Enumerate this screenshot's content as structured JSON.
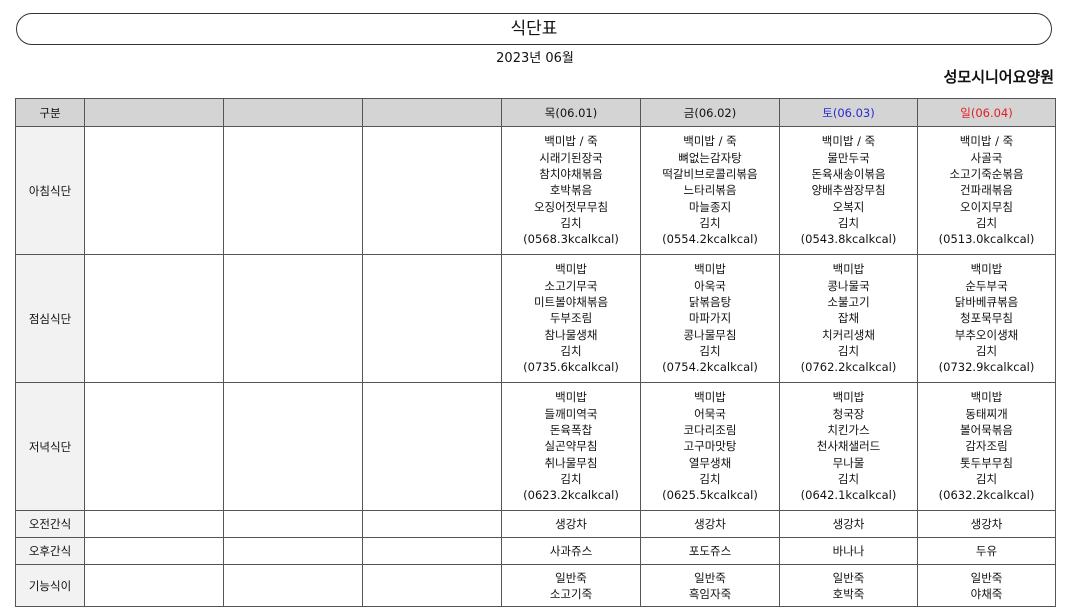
{
  "title": "식단표",
  "month": "2023년 06월",
  "organization": "성모시니어요양원",
  "colors": {
    "saturday": "#2a2ad0",
    "sunday": "#e02020",
    "header_bg": "#d4d4d4"
  },
  "header": {
    "category": "구분",
    "days": [
      "목(06.01)",
      "금(06.02)",
      "토(06.03)",
      "일(06.04)"
    ]
  },
  "rows": [
    {
      "label": "아침식단",
      "cells": [
        [
          "백미밥 / 죽",
          "시래기된장국",
          "참치야채볶음",
          "호박볶음",
          "오징어젓무무침",
          "김치",
          "(0568.3kcalkcal)"
        ],
        [
          "백미밥 / 죽",
          "뼈없는감자탕",
          "떡갈비브로콜리볶음",
          "느타리볶음",
          "마늘종지",
          "김치",
          "(0554.2kcalkcal)"
        ],
        [
          "백미밥 / 죽",
          "물만두국",
          "돈육새송이볶음",
          "양배추쌈장무침",
          "오복지",
          "김치",
          "(0543.8kcalkcal)"
        ],
        [
          "백미밥 / 죽",
          "사골국",
          "소고기죽순볶음",
          "건파래볶음",
          "오이지무침",
          "김치",
          "(0513.0kcalkcal)"
        ]
      ]
    },
    {
      "label": "점심식단",
      "cells": [
        [
          "백미밥",
          "소고기무국",
          "미트볼야채볶음",
          "두부조림",
          "참나물생채",
          "김치",
          "(0735.6kcalkcal)"
        ],
        [
          "백미밥",
          "아욱국",
          "닭볶음탕",
          "마파가지",
          "콩나물무침",
          "김치",
          "(0754.2kcalkcal)"
        ],
        [
          "백미밥",
          "콩나물국",
          "소불고기",
          "잡채",
          "치커리생채",
          "김치",
          "(0762.2kcalkcal)"
        ],
        [
          "백미밥",
          "순두부국",
          "닭바베큐볶음",
          "청포묵무침",
          "부추오이생채",
          "김치",
          "(0732.9kcalkcal)"
        ]
      ]
    },
    {
      "label": "저녁식단",
      "cells": [
        [
          "백미밥",
          "들깨미역국",
          "돈육폭찹",
          "실곤약무침",
          "취나물무침",
          "김치",
          "(0623.2kcalkcal)"
        ],
        [
          "백미밥",
          "어묵국",
          "코다리조림",
          "고구마맛탕",
          "열무생채",
          "김치",
          "(0625.5kcalkcal)"
        ],
        [
          "백미밥",
          "청국장",
          "치킨가스",
          "천사채샐러드",
          "무나물",
          "김치",
          "(0642.1kcalkcal)"
        ],
        [
          "백미밥",
          "동태찌개",
          "볼어묵볶음",
          "감자조림",
          "톳두부무침",
          "김치",
          "(0632.2kcalkcal)"
        ]
      ]
    },
    {
      "label": "오전간식",
      "cells": [
        [
          "생강차"
        ],
        [
          "생강차"
        ],
        [
          "생강차"
        ],
        [
          "생강차"
        ]
      ]
    },
    {
      "label": "오후간식",
      "cells": [
        [
          "사과쥬스"
        ],
        [
          "포도쥬스"
        ],
        [
          "바나나"
        ],
        [
          "두유"
        ]
      ]
    },
    {
      "label": "기능식이",
      "cells": [
        [
          "일반죽",
          "소고기죽"
        ],
        [
          "일반죽",
          "흑임자죽"
        ],
        [
          "일반죽",
          "호박죽"
        ],
        [
          "일반죽",
          "야채죽"
        ]
      ]
    }
  ]
}
